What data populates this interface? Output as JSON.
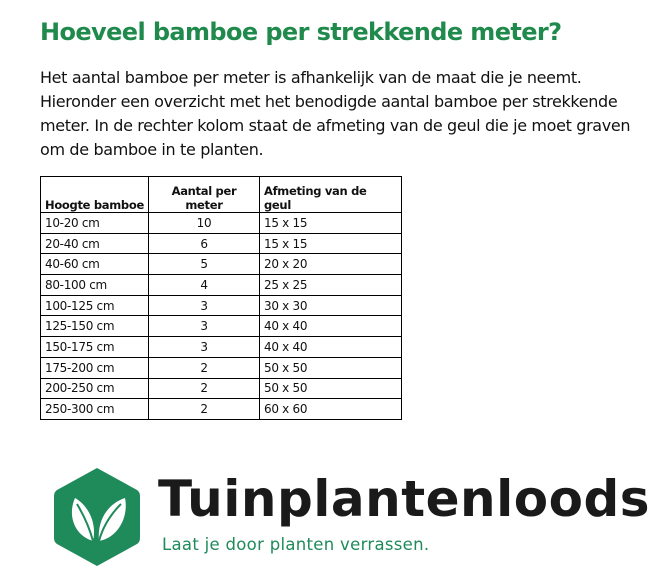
{
  "title": "Hoeveel bamboe per strekkende meter?",
  "intro": "Het aantal bamboe per meter is afhankelijk van de maat die je neemt. Hieronder een overzicht met het benodigde aantal bamboe per strekkende meter. In de rechter kolom staat de afmeting van de geul die je moet graven om de bamboe in te planten.",
  "table": {
    "headers": [
      "Hoogte bamboe",
      "Aantal per meter",
      "Afmeting van de geul"
    ],
    "rows": [
      [
        "10-20 cm",
        "10",
        "15 x 15"
      ],
      [
        "20-40 cm",
        "6",
        "15 x 15"
      ],
      [
        "40-60 cm",
        "5",
        "20 x 20"
      ],
      [
        "80-100 cm",
        "4",
        "25 x 25"
      ],
      [
        "100-125 cm",
        "3",
        "30 x 30"
      ],
      [
        "125-150 cm",
        "3",
        "40 x 40"
      ],
      [
        "150-175 cm",
        "3",
        "40 x 40"
      ],
      [
        "175-200 cm",
        "2",
        "50 x 50"
      ],
      [
        "200-250 cm",
        "2",
        "50 x 50"
      ],
      [
        "250-300 cm",
        "2",
        "60 x 60"
      ]
    ]
  },
  "logo": {
    "brand": "Tuinplantenloods",
    "tagline": "Laat je door planten verrassen.",
    "color": "#1f8a5a",
    "icon": "leaf-hexagon-icon"
  }
}
